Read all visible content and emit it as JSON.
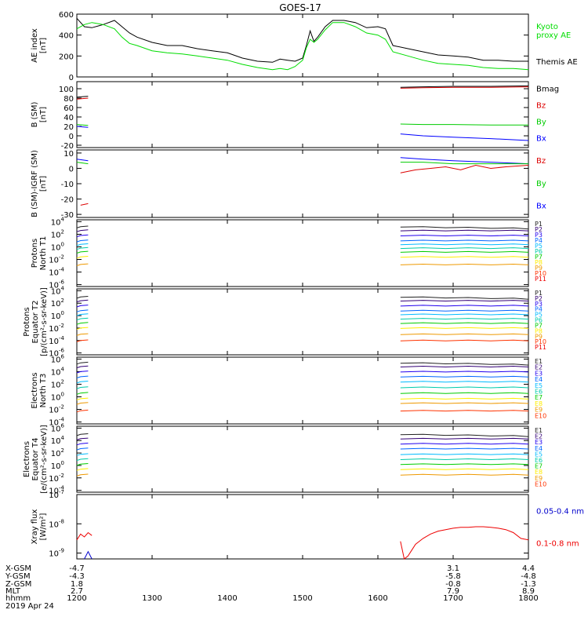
{
  "title": "GOES-17",
  "date_label": "2019 Apr 24",
  "colors": {
    "ae_kyoto": "#00dd00",
    "ae_themis": "#000000",
    "bx": "#0000ff",
    "by": "#00cc00",
    "bz": "#dd0000",
    "bmag": "#000000",
    "xray_long": "#ee0000",
    "xray_short": "#0000cc"
  },
  "channel_colors": {
    "P": [
      "#222222",
      "#330077",
      "#2200ee",
      "#0066ff",
      "#00bbff",
      "#00ccaa",
      "#00cc00",
      "#ffee00",
      "#ee9900",
      "#ff3300",
      "#ee0000"
    ],
    "E": [
      "#222222",
      "#330077",
      "#2200ee",
      "#0066ff",
      "#00bbff",
      "#00ccaa",
      "#00cc00",
      "#ffee00",
      "#ee9900",
      "#ff3300"
    ]
  },
  "ephemeris": {
    "labels": [
      "X-GSM",
      "Y-GSM",
      "Z-GSM",
      "MLT",
      "hhmm"
    ],
    "columns": [
      {
        "x": 1200,
        "values": [
          "-4.7",
          "-4.3",
          "1.8",
          "2.7",
          "1200"
        ]
      },
      {
        "x": 1300,
        "values": [
          "",
          "",
          "",
          "",
          "1300"
        ]
      },
      {
        "x": 1400,
        "values": [
          "",
          "",
          "",
          "",
          "1400"
        ]
      },
      {
        "x": 1500,
        "values": [
          "",
          "",
          "",
          "",
          "1500"
        ]
      },
      {
        "x": 1600,
        "values": [
          "",
          "",
          "",
          "",
          "1600"
        ]
      },
      {
        "x": 1700,
        "values": [
          "3.1",
          "-5.8",
          "-0.8",
          "7.9",
          "1700"
        ]
      },
      {
        "x": 1800,
        "values": [
          "4.4",
          "-4.8",
          "-1.3",
          "8.9",
          "1800"
        ]
      }
    ]
  },
  "chart_data": [
    {
      "type": "line",
      "id": "ae",
      "ylabel": "AE index\n[nT]",
      "ylim": [
        0,
        600
      ],
      "yticks": [
        0,
        200,
        400,
        600
      ],
      "xlim": [
        1200,
        1800
      ],
      "series": [
        {
          "name": "Themis AE",
          "color": "ae_themis",
          "x": [
            1200,
            1210,
            1220,
            1235,
            1250,
            1260,
            1270,
            1280,
            1300,
            1320,
            1340,
            1360,
            1380,
            1400,
            1420,
            1440,
            1460,
            1470,
            1480,
            1490,
            1500,
            1505,
            1510,
            1515,
            1520,
            1530,
            1540,
            1555,
            1570,
            1585,
            1600,
            1610,
            1620,
            1640,
            1660,
            1680,
            1700,
            1720,
            1740,
            1760,
            1780,
            1800
          ],
          "y": [
            560,
            480,
            470,
            500,
            540,
            480,
            420,
            380,
            330,
            300,
            300,
            270,
            250,
            230,
            180,
            150,
            140,
            170,
            160,
            150,
            180,
            300,
            440,
            340,
            380,
            480,
            540,
            540,
            520,
            470,
            480,
            460,
            300,
            270,
            240,
            210,
            200,
            190,
            160,
            160,
            150,
            150
          ]
        },
        {
          "name": "Kyoto\nproxy AE",
          "color": "ae_kyoto",
          "x": [
            1200,
            1210,
            1220,
            1235,
            1250,
            1260,
            1270,
            1280,
            1300,
            1320,
            1340,
            1360,
            1380,
            1400,
            1420,
            1440,
            1460,
            1470,
            1480,
            1490,
            1500,
            1505,
            1510,
            1515,
            1520,
            1530,
            1540,
            1555,
            1570,
            1585,
            1600,
            1610,
            1620,
            1640,
            1660,
            1680,
            1700,
            1720,
            1740,
            1760,
            1780,
            1800
          ],
          "y": [
            460,
            500,
            520,
            500,
            460,
            380,
            320,
            300,
            250,
            230,
            220,
            200,
            180,
            160,
            120,
            90,
            70,
            80,
            70,
            100,
            160,
            280,
            360,
            330,
            360,
            450,
            520,
            520,
            480,
            420,
            400,
            360,
            240,
            200,
            160,
            130,
            120,
            110,
            90,
            80,
            80,
            70
          ]
        }
      ]
    },
    {
      "type": "line",
      "id": "bsm",
      "ylabel": "B (SM)\n[nT]",
      "ylim": [
        -25,
        115
      ],
      "yticks": [
        -20,
        0,
        20,
        40,
        60,
        80,
        100
      ],
      "xlim": [
        1200,
        1800
      ],
      "series": [
        {
          "name": "Bx",
          "color": "bx",
          "segments": [
            {
              "x": [
                1200,
                1215
              ],
              "y": [
                20,
                18
              ]
            },
            {
              "x": [
                1630,
                1660,
                1700,
                1750,
                1800
              ],
              "y": [
                4,
                0,
                -3,
                -6,
                -10
              ]
            }
          ]
        },
        {
          "name": "By",
          "color": "by",
          "segments": [
            {
              "x": [
                1200,
                1215
              ],
              "y": [
                24,
                22
              ]
            },
            {
              "x": [
                1630,
                1660,
                1700,
                1750,
                1800
              ],
              "y": [
                25,
                24,
                24,
                23,
                23
              ]
            }
          ]
        },
        {
          "name": "Bz",
          "color": "bz",
          "segments": [
            {
              "x": [
                1200,
                1215
              ],
              "y": [
                78,
                80
              ]
            },
            {
              "x": [
                1630,
                1660,
                1700,
                1750,
                1800
              ],
              "y": [
                101,
                102,
                103,
                103,
                104
              ]
            }
          ]
        },
        {
          "name": "Bmag",
          "color": "bmag",
          "segments": [
            {
              "x": [
                1200,
                1215
              ],
              "y": [
                82,
                84
              ]
            },
            {
              "x": [
                1630,
                1660,
                1700,
                1750,
                1800
              ],
              "y": [
                103,
                104,
                105,
                105,
                106
              ]
            }
          ]
        }
      ]
    },
    {
      "type": "line",
      "id": "bigrf",
      "ylabel": "B (SM)-IGRF (SM)\n[nT]",
      "ylim": [
        -32,
        12
      ],
      "yticks": [
        -30,
        -20,
        -10,
        0,
        10
      ],
      "xlim": [
        1200,
        1800
      ],
      "series": [
        {
          "name": "Bx",
          "color": "bx",
          "segments": [
            {
              "x": [
                1200,
                1215
              ],
              "y": [
                6,
                5
              ]
            },
            {
              "x": [
                1630,
                1660,
                1700,
                1750,
                1800
              ],
              "y": [
                7,
                6,
                5,
                4,
                3
              ]
            }
          ]
        },
        {
          "name": "By",
          "color": "by",
          "segments": [
            {
              "x": [
                1200,
                1215
              ],
              "y": [
                4,
                3
              ]
            },
            {
              "x": [
                1630,
                1660,
                1700,
                1750,
                1800
              ],
              "y": [
                4,
                4,
                3,
                3,
                3
              ]
            }
          ]
        },
        {
          "name": "Bz",
          "color": "bz",
          "segments": [
            {
              "x": [
                1205,
                1215
              ],
              "y": [
                -24,
                -23
              ]
            },
            {
              "x": [
                1630,
                1650,
                1670,
                1690,
                1710,
                1730,
                1750,
                1770,
                1800
              ],
              "y": [
                -3,
                -1,
                0,
                1,
                -1,
                2,
                0,
                1,
                2
              ]
            }
          ]
        }
      ]
    },
    {
      "type": "line",
      "id": "pn",
      "ylabel": "Protons\nNorth T1",
      "yscale": "log",
      "ylim": [
        -6.3,
        4.3
      ],
      "ytick_exps": [
        4,
        2,
        0,
        -2,
        -4,
        -6
      ],
      "xlim": [
        1200,
        1800
      ],
      "channels": [
        "P1",
        "P2",
        "P3",
        "P4",
        "P5",
        "P6",
        "P7",
        "P8",
        "P9",
        "P10",
        "P11"
      ],
      "levels": [
        3.2,
        2.6,
        1.8,
        1.0,
        0.4,
        -0.2,
        -0.8,
        -1.6,
        -2.8,
        null,
        null
      ]
    },
    {
      "type": "line",
      "id": "pe",
      "ylabel": "Protons\nEquator T2\n[p/(cm²-s-sr-keV)]",
      "yscale": "log",
      "ylim": [
        -6.3,
        4.3
      ],
      "ytick_exps": [
        4,
        2,
        0,
        -2,
        -4,
        -6
      ],
      "xlim": [
        1200,
        1800
      ],
      "channels": [
        "P1",
        "P2",
        "P3",
        "P4",
        "P5",
        "P6",
        "P7",
        "P8",
        "P9",
        "P10",
        "P11"
      ],
      "levels": [
        3.0,
        2.4,
        1.6,
        0.8,
        0.2,
        -0.5,
        -1.2,
        -2.0,
        -3.0,
        -4.0,
        null
      ]
    },
    {
      "type": "line",
      "id": "en",
      "ylabel": "Electrons\nNorth T3",
      "yscale": "log",
      "ylim": [
        -4.3,
        6.3
      ],
      "ytick_exps": [
        6,
        4,
        2,
        0,
        -2,
        -4
      ],
      "xlim": [
        1200,
        1800
      ],
      "channels": [
        "E1",
        "E2",
        "E3",
        "E4",
        "E5",
        "E6",
        "E7",
        "E8",
        "E9",
        "E10"
      ],
      "levels": [
        5.4,
        4.8,
        4.0,
        3.2,
        2.4,
        1.5,
        0.6,
        -0.3,
        -1.0,
        -2.2
      ]
    },
    {
      "type": "line",
      "id": "ee",
      "ylabel": "Electrons\nEquator T4\n[e/(cm²-s-sr-keV)]",
      "yscale": "log",
      "ylim": [
        -4.3,
        6.3
      ],
      "ytick_exps": [
        6,
        4,
        2,
        0,
        -2,
        -4
      ],
      "xlim": [
        1200,
        1800
      ],
      "channels": [
        "E1",
        "E2",
        "E3",
        "E4",
        "E5",
        "E6",
        "E7",
        "E8",
        "E9",
        "E10"
      ],
      "levels": [
        5.0,
        4.3,
        3.5,
        2.7,
        1.8,
        1.0,
        0.2,
        -0.6,
        -1.5,
        null
      ]
    },
    {
      "type": "line",
      "id": "xray",
      "ylabel": "Xray flux\n[W/m²]",
      "yscale": "log",
      "ylim": [
        -9.2,
        -7.0
      ],
      "ytick_exps": [
        -7,
        -8,
        -9
      ],
      "xlim": [
        1200,
        1800
      ],
      "series": [
        {
          "name": "0.1-0.8 nm",
          "color": "xray_long",
          "segments": [
            {
              "x": [
                1200,
                1205,
                1210,
                1215,
                1220
              ],
              "y": [
                -8.55,
                -8.35,
                -8.45,
                -8.3,
                -8.4
              ]
            },
            {
              "x": [
                1630,
                1635,
                1640,
                1645,
                1650,
                1660,
                1670,
                1680,
                1690,
                1700,
                1710,
                1720,
                1730,
                1740,
                1750,
                1760,
                1770,
                1780,
                1790,
                1800
              ],
              "y": [
                -8.6,
                -9.2,
                -9.1,
                -8.9,
                -8.7,
                -8.5,
                -8.35,
                -8.25,
                -8.2,
                -8.15,
                -8.12,
                -8.12,
                -8.1,
                -8.1,
                -8.12,
                -8.15,
                -8.2,
                -8.3,
                -8.5,
                -8.55
              ]
            }
          ]
        },
        {
          "name": "0.05-0.4 nm",
          "color": "xray_short",
          "segments": [
            {
              "x": [
                1210,
                1215,
                1220
              ],
              "y": [
                -9.2,
                -8.95,
                -9.2
              ]
            }
          ]
        }
      ]
    }
  ]
}
